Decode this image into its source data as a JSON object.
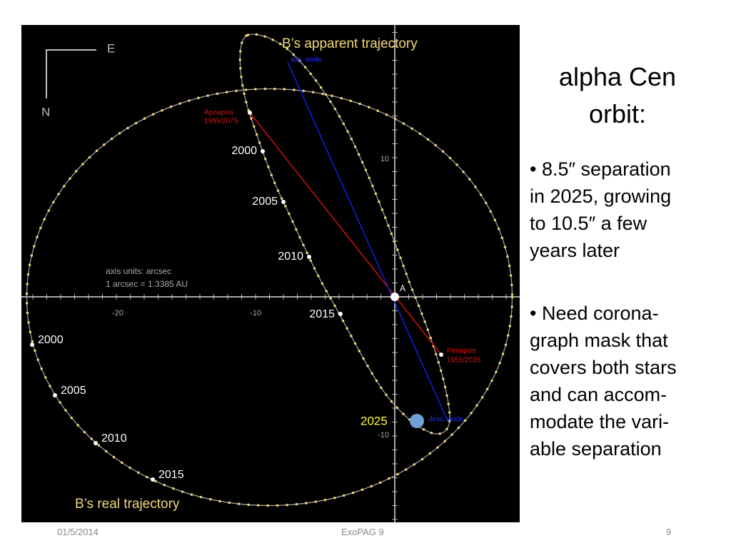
{
  "diagram": {
    "compass": {
      "east": "E",
      "north": "N"
    },
    "apparent_title": "B’s apparent trajectory",
    "asc_node": "asc. node",
    "desc_node": "desc. node",
    "apoapsis": {
      "label": "Apoapsis",
      "dates": "1995/2075"
    },
    "periapsis": {
      "label": "Periapsis",
      "dates": "1955/2035"
    },
    "star_a": "A",
    "apparent_years": [
      "2000",
      "2005",
      "2010",
      "2015"
    ],
    "current_year": "2025",
    "axis_note": [
      "axis units: arcsec",
      "1 arcsec = 1.3385 AU"
    ],
    "x_tick_labels": [
      "-20",
      "-10"
    ],
    "y_tick_labels": [
      "10",
      "-10"
    ],
    "real_years": [
      "2000",
      "2005",
      "2010",
      "2015"
    ],
    "real_title": "B’s real trajectory"
  },
  "slide": {
    "title": "alpha Cen orbit:",
    "bullets": [
      {
        "lines": [
          "8.5″ separation",
          "in 2025, growing",
          "to 10.5″ a few",
          "years later"
        ]
      },
      {
        "lines": [
          "Need corona-",
          "graph mask that",
          "covers both stars",
          "and can accom-",
          "modate the vari-",
          "able separation"
        ]
      }
    ]
  },
  "footer": {
    "date": "01/5/2014",
    "event": "ExoPAG 9",
    "page": "9"
  }
}
